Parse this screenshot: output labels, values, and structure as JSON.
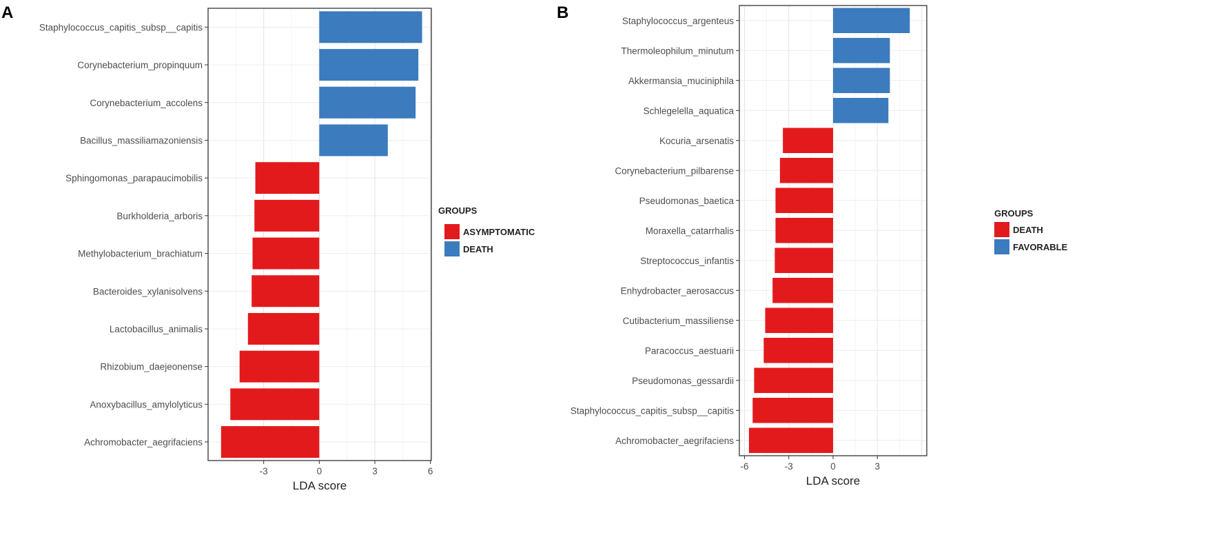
{
  "chart_data": [
    {
      "panel": "A",
      "type": "bar",
      "orientation": "horizontal",
      "categories": [
        "Staphylococcus_capitis_subsp__capitis",
        "Corynebacterium_propinquum",
        "Corynebacterium_accolens",
        "Bacillus_massiliamazoniensis",
        "Sphingomonas_parapaucimobilis",
        "Burkholderia_arboris",
        "Methylobacterium_brachiatum",
        "Bacteroides_xylanisolvens",
        "Lactobacillus_animalis",
        "Rhizobium_daejeonense",
        "Anoxybacillus_amylolyticus",
        "Achromobacter_aegrifaciens"
      ],
      "values": [
        5.55,
        5.35,
        5.2,
        3.7,
        -3.45,
        -3.5,
        -3.6,
        -3.65,
        -3.85,
        -4.3,
        -4.8,
        -5.3
      ],
      "groups": [
        "DEATH",
        "DEATH",
        "DEATH",
        "DEATH",
        "ASYMPTOMATIC",
        "ASYMPTOMATIC",
        "ASYMPTOMATIC",
        "ASYMPTOMATIC",
        "ASYMPTOMATIC",
        "ASYMPTOMATIC",
        "ASYMPTOMATIC",
        "ASYMPTOMATIC"
      ],
      "xlabel": "LDA score",
      "ylabel": "",
      "xlim": [
        -6,
        6.05
      ],
      "xticks": [
        -3,
        0,
        3,
        6
      ],
      "xtick_labels": [
        "-3",
        "0",
        "3",
        "6"
      ],
      "grid": true,
      "legend": {
        "title": "GROUPS",
        "placement": "right",
        "entries": [
          {
            "label": "ASYMPTOMATIC",
            "color": "#E31A1C"
          },
          {
            "label": "DEATH",
            "color": "#3B7BBE"
          }
        ]
      }
    },
    {
      "panel": "B",
      "type": "bar",
      "orientation": "horizontal",
      "categories": [
        "Staphylococcus_argenteus",
        "Thermoleophilum_minutum",
        "Akkermansia_muciniphila",
        "Schlegelella_aquatica",
        "Kocuria_arsenatis",
        "Corynebacterium_pilbarense",
        "Pseudomonas_baetica",
        "Moraxella_catarrhalis",
        "Streptococcus_infantis",
        "Enhydrobacter_aerosaccus",
        "Cutibacterium_massiliense",
        "Paracoccus_aestuarii",
        "Pseudomonas_gessardii",
        "Staphylococcus_capitis_subsp__capitis",
        "Achromobacter_aegrifaciens"
      ],
      "values": [
        5.2,
        3.85,
        3.85,
        3.75,
        -3.4,
        -3.6,
        -3.9,
        -3.9,
        -3.95,
        -4.1,
        -4.6,
        -4.7,
        -5.35,
        -5.45,
        -5.7
      ],
      "groups": [
        "FAVORABLE",
        "FAVORABLE",
        "FAVORABLE",
        "FAVORABLE",
        "DEATH",
        "DEATH",
        "DEATH",
        "DEATH",
        "DEATH",
        "DEATH",
        "DEATH",
        "DEATH",
        "DEATH",
        "DEATH",
        "DEATH"
      ],
      "xlabel": "LDA score",
      "ylabel": "",
      "xlim": [
        -6.35,
        6.35
      ],
      "xticks": [
        -6,
        -3,
        0,
        3
      ],
      "xtick_labels": [
        "-6",
        "-3",
        "0",
        "3"
      ],
      "grid": true,
      "legend": {
        "title": "GROUPS",
        "placement": "right",
        "entries": [
          {
            "label": "DEATH",
            "color": "#E31A1C"
          },
          {
            "label": "FAVORABLE",
            "color": "#3B7BBE"
          }
        ]
      }
    }
  ],
  "colors": {
    "positive_bar": "#3B7BBE",
    "negative_bar": "#E31A1C",
    "grid": "#E6E6E6",
    "panel_border": "#333333",
    "text": "#4D4D4D"
  }
}
